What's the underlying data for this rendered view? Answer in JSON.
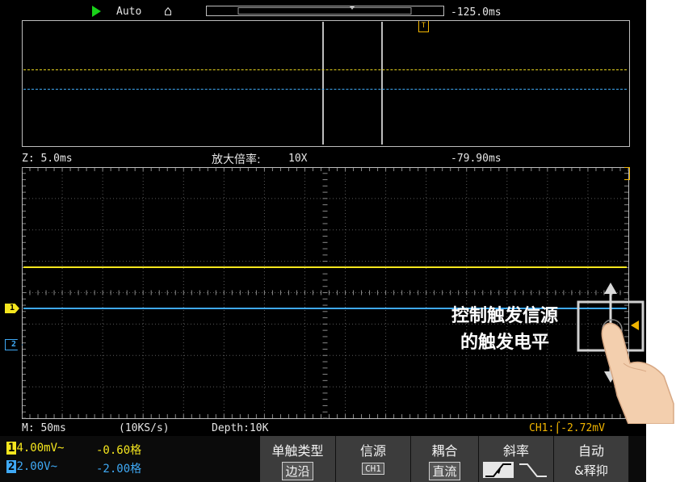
{
  "top_bar": {
    "mode": "Auto",
    "time_offset": "-125.0ms",
    "home_icon": "home-icon",
    "trigger_marker": "T"
  },
  "zoom_bar": {
    "zoom_time": "Z: 5.0ms",
    "magnify_label": "放大倍率:",
    "magnify_value": "10X",
    "offset": "-79.90ms"
  },
  "status_bar": {
    "time_base": "M: 50ms",
    "sample_rate": "(10KS/s)",
    "depth": "Depth:10K",
    "trigger_info": "CH1:",
    "trigger_level": "-2.72mV"
  },
  "channels": [
    {
      "num": "1",
      "scale": "4.00mV~",
      "offset": "-0.60格",
      "color": "#f5e61e"
    },
    {
      "num": "2",
      "scale": "2.00V~",
      "offset": "-2.00格",
      "color": "#3fa9f5"
    }
  ],
  "menu": [
    {
      "title": "单触类型",
      "value": "边沿"
    },
    {
      "title": "信源",
      "value": "CH1"
    },
    {
      "title": "耦合",
      "value": "直流"
    },
    {
      "title": "斜率",
      "value": ""
    },
    {
      "title": "自动",
      "value": "&释抑"
    }
  ],
  "annotation": {
    "line1": "控制触发信源",
    "line2": "的触发电平"
  },
  "colors": {
    "ch1": "#f5e61e",
    "ch2": "#3fa9f5",
    "trigger": "#f0b400",
    "grid": "#5a5a5a"
  }
}
